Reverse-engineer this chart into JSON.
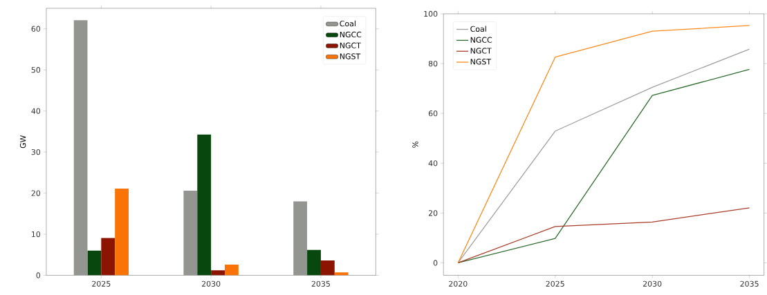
{
  "chart_data": [
    {
      "type": "bar",
      "ylabel": "GW",
      "categories": [
        "2025",
        "2030",
        "2035"
      ],
      "ylim": [
        0,
        65
      ],
      "yticks": [
        0,
        10,
        20,
        30,
        40,
        50,
        60
      ],
      "legend": "top right",
      "series": [
        {
          "name": "Coal",
          "color": "#939591",
          "values": [
            62.1,
            20.6,
            18.0
          ]
        },
        {
          "name": "NGCC",
          "color": "#08470e",
          "values": [
            6.0,
            34.3,
            6.2
          ]
        },
        {
          "name": "NGCT",
          "color": "#8b1500",
          "values": [
            9.1,
            1.2,
            3.6
          ]
        },
        {
          "name": "NGST",
          "color": "#f97306",
          "values": [
            21.1,
            2.6,
            0.7
          ]
        }
      ]
    },
    {
      "type": "line",
      "ylabel": "%",
      "x": [
        2020,
        2025,
        2030,
        2035
      ],
      "xlim": [
        2019.25,
        2035.75
      ],
      "xticks": [
        2020,
        2025,
        2030,
        2035
      ],
      "ylim": [
        -5,
        100
      ],
      "yticks": [
        0,
        20,
        40,
        60,
        80,
        100
      ],
      "legend": "top left",
      "series": [
        {
          "name": "Coal",
          "color": "#a0a0a0",
          "values": [
            0,
            52.9,
            70.5,
            85.8
          ]
        },
        {
          "name": "NGCC",
          "color": "#2e6b2e",
          "values": [
            0,
            9.8,
            67.2,
            77.7
          ]
        },
        {
          "name": "NGCT",
          "color": "#a83c2a",
          "values": [
            0,
            14.6,
            16.4,
            22.1
          ]
        },
        {
          "name": "NGST",
          "color": "#f98a1e",
          "values": [
            0,
            82.6,
            93.0,
            95.3
          ]
        }
      ]
    }
  ]
}
